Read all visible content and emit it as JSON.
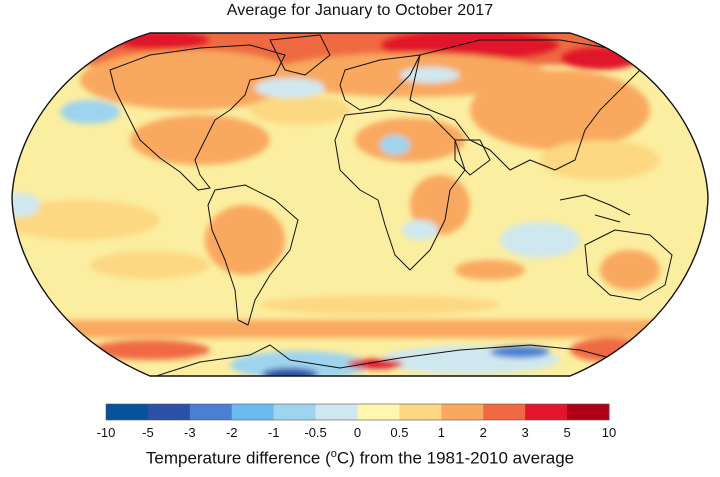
{
  "title": "Average for January to October 2017",
  "legend": {
    "labels": [
      "-10",
      "-5",
      "-3",
      "-2",
      "-1",
      "-0.5",
      "0",
      "0.5",
      "1",
      "2",
      "3",
      "5",
      "10"
    ],
    "colors": [
      "#08519c",
      "#2c4fa8",
      "#4a7fd4",
      "#6cb9ef",
      "#9fd4ee",
      "#cfe8ef",
      "#fff7b0",
      "#fdd882",
      "#f9a85e",
      "#ef6a42",
      "#e1152c",
      "#b00018"
    ],
    "caption_prefix": "Temperature difference (",
    "caption_unit_sup": "o",
    "caption_unit": "C",
    "caption_suffix": ") from the 1981-2010 average"
  },
  "map": {
    "projection": "Robinson",
    "colors": {
      "ocean_base": "#fbeea0",
      "warm_light": "#fdd882",
      "warm_mid": "#f9a85e",
      "warm_strong": "#ef6a42",
      "hot": "#e1152c",
      "cool_light": "#cfe8ef",
      "cool_mid": "#9fd4ee",
      "cool_strong": "#4a7fd4",
      "cold": "#2c4fa8",
      "outline": "#111111"
    }
  }
}
